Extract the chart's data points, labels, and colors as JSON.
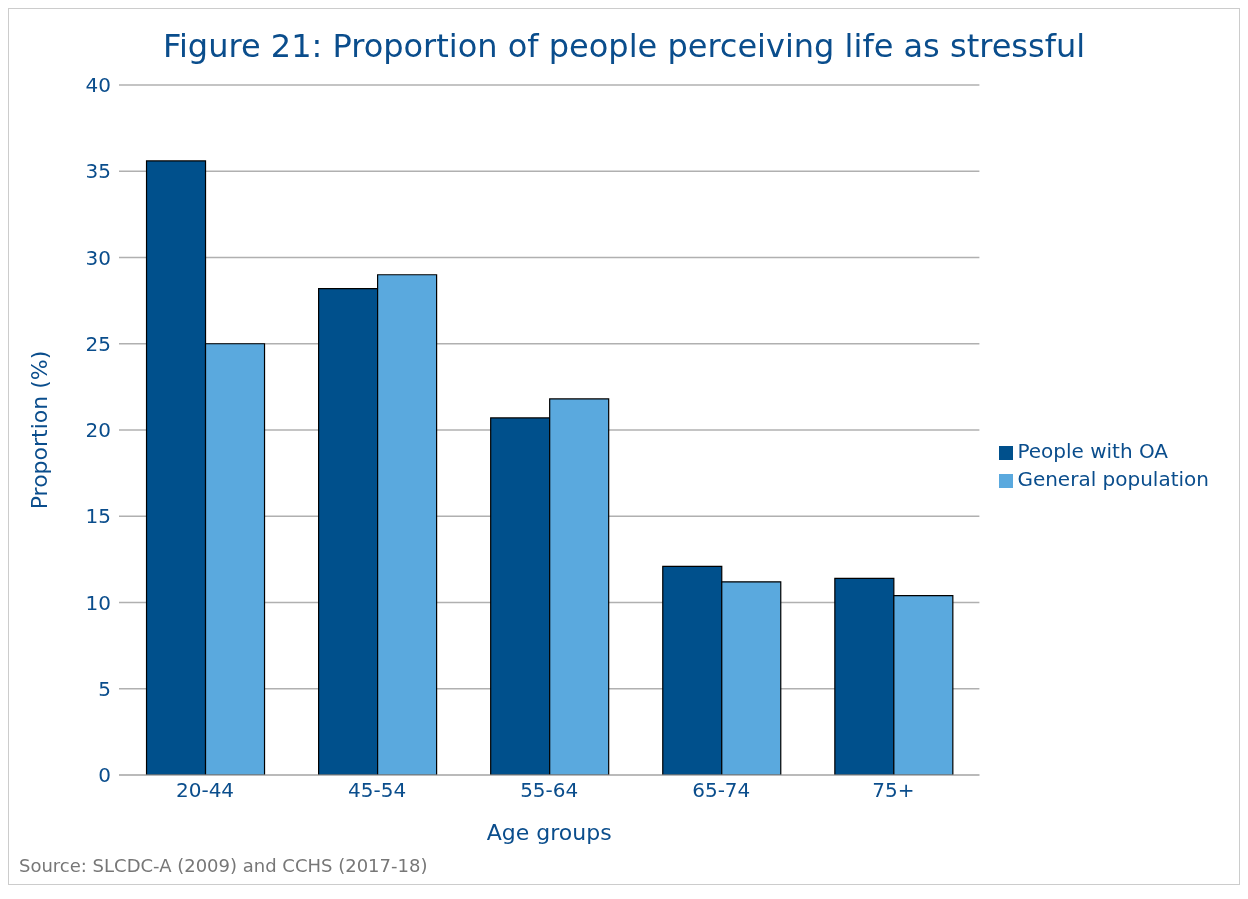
{
  "chart_data": {
    "type": "bar",
    "title": "Figure 21: Proportion of people perceiving life as stressful",
    "xlabel": "Age groups",
    "ylabel": "Proportion (%)",
    "categories": [
      "20-44",
      "45-54",
      "55-64",
      "65-74",
      "75+"
    ],
    "series": [
      {
        "name": "People with OA",
        "color": "#00508c",
        "values": [
          35.6,
          28.2,
          20.7,
          12.1,
          11.4
        ]
      },
      {
        "name": "General population",
        "color": "#5aa9de",
        "values": [
          25.0,
          29.0,
          21.8,
          11.2,
          10.4
        ]
      }
    ],
    "ylim": [
      0,
      40
    ],
    "yticks": [
      0,
      5,
      10,
      15,
      20,
      25,
      30,
      35,
      40
    ],
    "grid": "y",
    "legend": "right",
    "annotations": [
      "Source: SLCDC-A (2009) and CCHS (2017-18)"
    ]
  }
}
